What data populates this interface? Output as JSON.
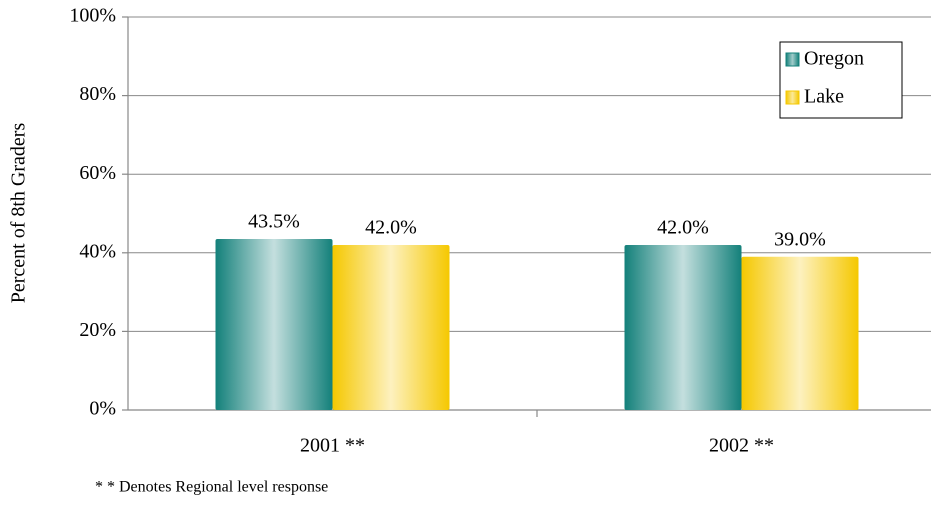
{
  "chart_data": {
    "type": "bar",
    "y_label": "Percent of 8th Graders",
    "categories": [
      "2001 **",
      "2002 **"
    ],
    "series": [
      {
        "name": "Oregon",
        "color": "#13807a",
        "values": [
          43.5,
          42.0
        ],
        "value_labels": [
          "43.5%",
          "42.0%"
        ]
      },
      {
        "name": "Lake",
        "color": "#f5c800",
        "values": [
          42.0,
          39.0
        ],
        "value_labels": [
          "42.0%",
          "39.0%"
        ]
      }
    ],
    "ylim": [
      0,
      100
    ],
    "yticks": [
      {
        "value": 0,
        "label": "0%"
      },
      {
        "value": 20,
        "label": "20%"
      },
      {
        "value": 40,
        "label": "40%"
      },
      {
        "value": 60,
        "label": "60%"
      },
      {
        "value": 80,
        "label": "80%"
      },
      {
        "value": 100,
        "label": "100%"
      }
    ],
    "grid": true,
    "legend": "upper right",
    "footnote": "* * Denotes Regional level response"
  }
}
